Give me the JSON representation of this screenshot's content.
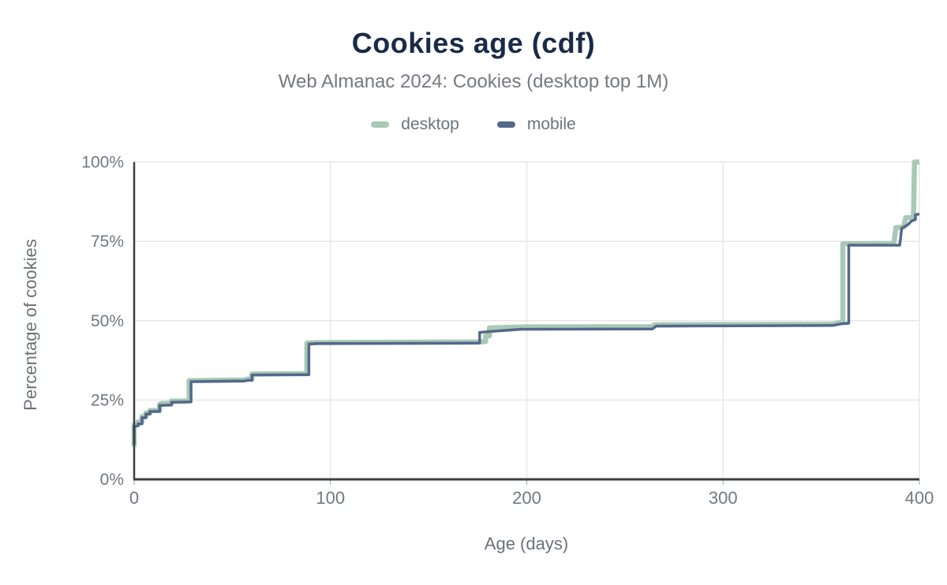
{
  "header": {
    "title": "Cookies age (cdf)",
    "subtitle": "Web Almanac 2024: Cookies (desktop top 1M)"
  },
  "chart_data": {
    "type": "line",
    "title": "Cookies age (cdf)",
    "subtitle": "Web Almanac 2024: Cookies (desktop top 1M)",
    "xlabel": "Age (days)",
    "ylabel": "Percentage of cookies",
    "xlim": [
      0,
      400
    ],
    "ylim": [
      0,
      100
    ],
    "grid": true,
    "legend_position": "top",
    "step": true,
    "colors": {
      "title": "#1a2b49",
      "subtitle": "#75797e",
      "grid": "#e7e7e7",
      "axis": "#3b3e42",
      "ticks": "#72787e"
    },
    "x_ticks": [
      {
        "value": 0,
        "label": "0"
      },
      {
        "value": 100,
        "label": "100"
      },
      {
        "value": 200,
        "label": "200"
      },
      {
        "value": 300,
        "label": "300"
      },
      {
        "value": 400,
        "label": "400"
      }
    ],
    "y_ticks": [
      {
        "value": 0,
        "label": "0%"
      },
      {
        "value": 25,
        "label": "25%"
      },
      {
        "value": 50,
        "label": "50%"
      },
      {
        "value": 75,
        "label": "75%"
      },
      {
        "value": 100,
        "label": "100%"
      }
    ],
    "series": [
      {
        "name": "desktop",
        "color": "#a8c9b5",
        "width": 6.5,
        "points": [
          [
            0,
            10.3
          ],
          [
            0,
            17.2
          ],
          [
            2,
            17.3
          ],
          [
            2,
            18.1
          ],
          [
            4,
            18.1
          ],
          [
            4,
            19.8
          ],
          [
            6,
            19.8
          ],
          [
            6,
            20.9
          ],
          [
            8,
            20.9
          ],
          [
            8,
            21.7
          ],
          [
            13,
            21.7
          ],
          [
            13,
            23.7
          ],
          [
            14,
            23.9
          ],
          [
            19,
            23.9
          ],
          [
            19,
            24.7
          ],
          [
            27,
            24.7
          ],
          [
            28,
            24.9
          ],
          [
            28,
            31.1
          ],
          [
            56,
            31.3
          ],
          [
            58,
            31.6
          ],
          [
            60,
            31.6
          ],
          [
            60,
            33.2
          ],
          [
            88,
            33.3
          ],
          [
            88,
            42.9
          ],
          [
            93,
            43.1
          ],
          [
            176,
            43.3
          ],
          [
            179,
            43.4
          ],
          [
            179,
            45.2
          ],
          [
            181,
            45.2
          ],
          [
            181,
            47.7
          ],
          [
            197,
            48.0
          ],
          [
            264,
            48.1
          ],
          [
            265,
            48.7
          ],
          [
            310,
            48.8
          ],
          [
            356,
            48.9
          ],
          [
            359,
            49.4
          ],
          [
            361,
            49.6
          ],
          [
            361,
            74.2
          ],
          [
            387,
            74.3
          ],
          [
            388,
            79.3
          ],
          [
            392,
            79.5
          ],
          [
            393,
            82.4
          ],
          [
            397,
            82.6
          ],
          [
            397.5,
            100
          ],
          [
            400,
            100
          ]
        ]
      },
      {
        "name": "mobile",
        "color": "#54688a",
        "width": 3.5,
        "points": [
          [
            0,
            11.0
          ],
          [
            0,
            16.7
          ],
          [
            2,
            16.9
          ],
          [
            2,
            17.5
          ],
          [
            4,
            17.5
          ],
          [
            4,
            19.4
          ],
          [
            6,
            19.4
          ],
          [
            6,
            20.6
          ],
          [
            8,
            20.6
          ],
          [
            8,
            21.4
          ],
          [
            13,
            21.4
          ],
          [
            13,
            23.3
          ],
          [
            19,
            23.4
          ],
          [
            19,
            24.3
          ],
          [
            29,
            24.4
          ],
          [
            29,
            30.8
          ],
          [
            56,
            31.0
          ],
          [
            58,
            31.2
          ],
          [
            60,
            31.2
          ],
          [
            60,
            32.9
          ],
          [
            89,
            33.0
          ],
          [
            89,
            42.6
          ],
          [
            93,
            42.8
          ],
          [
            175,
            42.9
          ],
          [
            176,
            43.0
          ],
          [
            176,
            46.3
          ],
          [
            180,
            46.5
          ],
          [
            197,
            47.3
          ],
          [
            264,
            47.4
          ],
          [
            266,
            48.3
          ],
          [
            310,
            48.4
          ],
          [
            356,
            48.5
          ],
          [
            360,
            49.0
          ],
          [
            364,
            49.2
          ],
          [
            364,
            73.8
          ],
          [
            390,
            73.8
          ],
          [
            391,
            79.1
          ],
          [
            394,
            80.2
          ],
          [
            396,
            81.4
          ],
          [
            398,
            81.9
          ],
          [
            398,
            83.4
          ],
          [
            400,
            83.6
          ]
        ]
      }
    ]
  }
}
